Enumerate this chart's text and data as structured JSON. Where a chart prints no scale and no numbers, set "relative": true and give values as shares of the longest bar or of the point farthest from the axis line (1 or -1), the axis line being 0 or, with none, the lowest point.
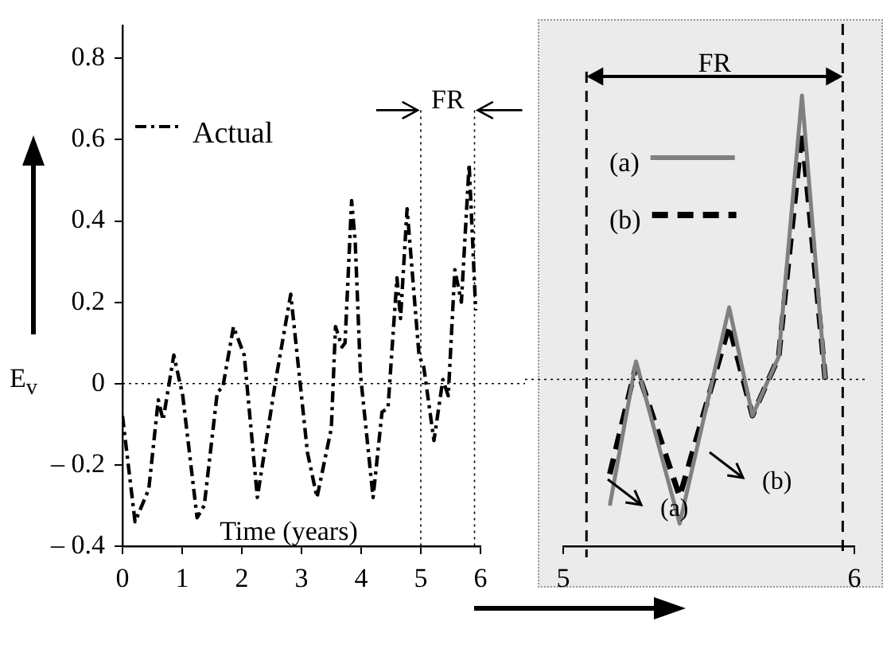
{
  "chart_data": [
    {
      "type": "line",
      "xlabel": "Time (years)",
      "ylabel": "E$_{v}$",
      "x": [
        0,
        0.21,
        0.44,
        0.6,
        0.68,
        0.86,
        1.01,
        1.25,
        1.37,
        1.59,
        1.68,
        1.86,
        2.04,
        2.26,
        2.57,
        2.82,
        3.1,
        3.26,
        3.5,
        3.57,
        3.68,
        3.73,
        3.84,
        3.9,
        3.99,
        4.2,
        4.35,
        4.45,
        4.6,
        4.66,
        4.77,
        4.97,
        5.05,
        5.22,
        5.37,
        5.46,
        5.57,
        5.68,
        5.81,
        5.92
      ],
      "series": [
        {
          "name": "Actual",
          "color": "#000000",
          "values": [
            -0.08,
            -0.34,
            -0.26,
            -0.04,
            -0.09,
            0.07,
            -0.03,
            -0.33,
            -0.3,
            -0.02,
            -0.01,
            0.14,
            0.07,
            -0.28,
            0.01,
            0.22,
            -0.17,
            -0.28,
            -0.11,
            0.14,
            0.09,
            0.1,
            0.45,
            0.35,
            0.02,
            -0.28,
            -0.07,
            -0.06,
            0.26,
            0.16,
            0.43,
            0.07,
            0.04,
            -0.14,
            0.01,
            -0.03,
            0.28,
            0.2,
            0.54,
            0.18
          ]
        }
      ],
      "xlim": [
        0,
        6
      ],
      "ylim": [
        -0.4,
        0.88
      ],
      "xticks": [
        0,
        1,
        2,
        3,
        4,
        5,
        6
      ],
      "yticks": [
        {
          "value": -0.4,
          "label": "– 0.4"
        },
        {
          "value": -0.2,
          "label": "– 0.2"
        },
        0,
        0.2,
        0.4,
        0.6,
        0.8
      ],
      "legend": "top left",
      "line_style": "dashed",
      "marker": "none",
      "grid": false,
      "ref_lines": [
        {
          "axis": "y",
          "value": 0,
          "line_style": "dotted"
        },
        {
          "axis": "x",
          "value": 5,
          "line_style": "dotted"
        },
        {
          "axis": "x",
          "value": 5.9,
          "line_style": "dotted"
        }
      ],
      "annotations": [
        "FR"
      ]
    },
    {
      "type": "line",
      "relative": true,
      "xlim": [
        5,
        6
      ],
      "xticks": [
        5,
        6
      ],
      "series": [
        {
          "name": "(a)",
          "color": "#808080",
          "line_style": "solid",
          "x": [
            5.16,
            5.25,
            5.4,
            5.57,
            5.65,
            5.74,
            5.82,
            5.9
          ],
          "values": [
            0.09,
            0.41,
            0.05,
            0.53,
            0.29,
            0.42,
            1,
            0.37
          ]
        },
        {
          "name": "(b)",
          "color": "#000000",
          "line_style": "dashed",
          "x": [
            5.16,
            5.25,
            5.4,
            5.57,
            5.65,
            5.74,
            5.82,
            5.9
          ],
          "values": [
            0.16,
            0.4,
            0.11,
            0.49,
            0.29,
            0.42,
            0.92,
            0.37
          ]
        }
      ],
      "legend": "top left",
      "marker": "none",
      "grid": false,
      "ref_lines": [
        {
          "axis": "y",
          "value": 0.37,
          "line_style": "dotted"
        },
        {
          "axis": "x",
          "value": 5.08,
          "line_style": "dashed"
        },
        {
          "axis": "x",
          "value": 5.96,
          "line_style": "dashed"
        }
      ],
      "annotations": [
        "FR",
        "(a)",
        "(b)"
      ]
    }
  ]
}
